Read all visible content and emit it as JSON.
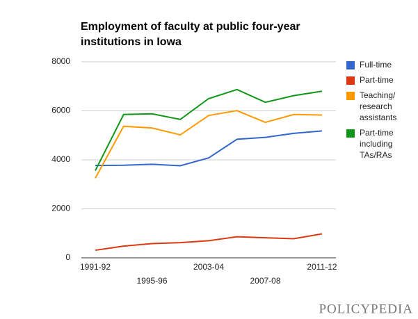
{
  "chart_data": {
    "type": "line",
    "title": "Employment of faculty at public four-year institutions in Iowa",
    "categories": [
      "1991-92",
      null,
      "1995-96",
      null,
      "2003-04",
      null,
      "2007-08",
      null,
      "2011-12"
    ],
    "series": [
      {
        "name": "Full-time",
        "color": "#3366cc",
        "values": [
          3770,
          3780,
          3820,
          3760,
          4080,
          4840,
          4920,
          5080,
          5180
        ]
      },
      {
        "name": "Part-time",
        "color": "#dc3912",
        "values": [
          310,
          480,
          580,
          620,
          700,
          860,
          820,
          780,
          980
        ]
      },
      {
        "name": "Teaching/ research assistants",
        "color": "#ff9900",
        "values": [
          3250,
          5370,
          5300,
          5020,
          5810,
          6010,
          5530,
          5850,
          5830
        ]
      },
      {
        "name": "Part-time including TAs/RAs",
        "color": "#109618",
        "values": [
          3560,
          5850,
          5880,
          5650,
          6500,
          6870,
          6350,
          6620,
          6800
        ]
      }
    ],
    "ylim": [
      0,
      8000
    ],
    "yticks": [
      0,
      2000,
      4000,
      6000,
      8000
    ],
    "grid": true,
    "legend": "right"
  },
  "footer": "POLICYPEDIA"
}
